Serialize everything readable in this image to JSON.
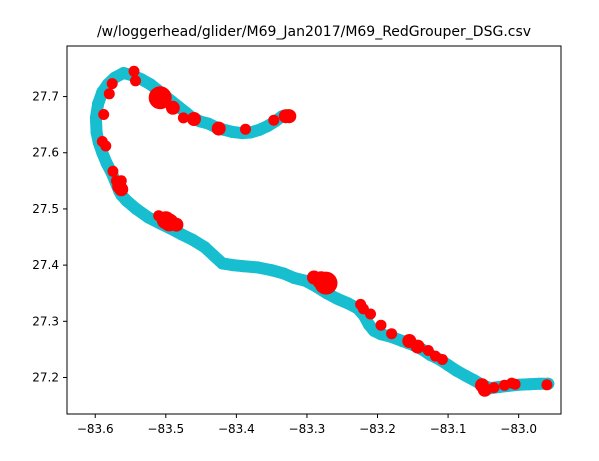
{
  "chart_data": {
    "type": "scatter",
    "title": "/w/loggerhead/glider/M69_Jan2017/M69_RedGrouper_DSG.csv",
    "xlabel": "",
    "ylabel": "",
    "xlim": [
      -83.64,
      -82.94
    ],
    "ylim": [
      27.135,
      27.79
    ],
    "x_ticks": [
      -83.6,
      -83.5,
      -83.4,
      -83.3,
      -83.2,
      -83.1,
      -83.0
    ],
    "x_tick_labels": [
      "−83.6",
      "−83.5",
      "−83.4",
      "−83.3",
      "−83.2",
      "−83.1",
      "−83.0"
    ],
    "y_ticks": [
      27.2,
      27.3,
      27.4,
      27.5,
      27.6,
      27.7
    ],
    "y_tick_labels": [
      "27.2",
      "27.3",
      "27.4",
      "27.5",
      "27.6",
      "27.7"
    ],
    "grid": false,
    "track_color": "#17becf",
    "marker_color": "#ff0000",
    "series": [
      {
        "kind": "track",
        "lon": [
          -83.326,
          -83.335,
          -83.345,
          -83.355,
          -83.367,
          -83.38,
          -83.392,
          -83.405,
          -83.418,
          -83.43,
          -83.44,
          -83.452,
          -83.463,
          -83.472,
          -83.482,
          -83.492,
          -83.502,
          -83.512,
          -83.522,
          -83.535,
          -83.548,
          -83.56,
          -83.572,
          -83.582,
          -83.59,
          -83.596,
          -83.599,
          -83.598,
          -83.595,
          -83.59,
          -83.584,
          -83.577,
          -83.571,
          -83.566,
          -83.563,
          -83.556,
          -83.542,
          -83.525,
          -83.508,
          -83.493,
          -83.478,
          -83.462,
          -83.445,
          -83.432,
          -83.42,
          -83.405,
          -83.39,
          -83.37,
          -83.35,
          -83.333,
          -83.318,
          -83.302,
          -83.287,
          -83.272,
          -83.257,
          -83.242,
          -83.228,
          -83.219,
          -83.212,
          -83.205,
          -83.195,
          -83.18,
          -83.165,
          -83.15,
          -83.137,
          -83.125,
          -83.112,
          -83.1,
          -83.088,
          -83.075,
          -83.063,
          -83.052,
          -83.04,
          -83.028,
          -83.015,
          -83.0,
          -82.985,
          -82.97,
          -82.958
        ],
        "lat": [
          27.667,
          27.665,
          27.656,
          27.648,
          27.641,
          27.636,
          27.635,
          27.637,
          27.641,
          27.646,
          27.652,
          27.656,
          27.663,
          27.672,
          27.682,
          27.692,
          27.702,
          27.712,
          27.722,
          27.731,
          27.738,
          27.742,
          27.734,
          27.722,
          27.708,
          27.687,
          27.662,
          27.636,
          27.618,
          27.6,
          27.582,
          27.565,
          27.547,
          27.532,
          27.525,
          27.515,
          27.5,
          27.485,
          27.474,
          27.465,
          27.455,
          27.445,
          27.432,
          27.417,
          27.403,
          27.4,
          27.398,
          27.396,
          27.391,
          27.385,
          27.377,
          27.372,
          27.362,
          27.35,
          27.34,
          27.332,
          27.323,
          27.31,
          27.294,
          27.283,
          27.277,
          27.272,
          27.265,
          27.258,
          27.25,
          27.24,
          27.232,
          27.222,
          27.212,
          27.203,
          27.195,
          27.187,
          27.181,
          27.183,
          27.185,
          27.187,
          27.188,
          27.189,
          27.189
        ]
      },
      {
        "kind": "detections",
        "lon": [
          -83.325,
          -83.33,
          -83.347,
          -83.387,
          -83.425,
          -83.46,
          -83.475,
          -83.49,
          -83.508,
          -83.543,
          -83.545,
          -83.576,
          -83.58,
          -83.588,
          -83.59,
          -83.585,
          -83.575,
          -83.57,
          -83.566,
          -83.563,
          -83.563,
          -83.51,
          -83.5,
          -83.495,
          -83.485,
          -83.29,
          -83.28,
          -83.273,
          -83.224,
          -83.22,
          -83.21,
          -83.195,
          -83.18,
          -83.155,
          -83.143,
          -83.128,
          -83.118,
          -83.108,
          -83.052,
          -83.048,
          -83.035,
          -83.02,
          -83.01,
          -83.005,
          -82.96
        ],
        "lat": [
          27.665,
          27.665,
          27.658,
          27.642,
          27.643,
          27.66,
          27.662,
          27.68,
          27.698,
          27.728,
          27.745,
          27.723,
          27.705,
          27.668,
          27.62,
          27.612,
          27.567,
          27.55,
          27.54,
          27.535,
          27.55,
          27.488,
          27.48,
          27.476,
          27.472,
          27.378,
          27.373,
          27.368,
          27.33,
          27.322,
          27.313,
          27.293,
          27.278,
          27.265,
          27.255,
          27.248,
          27.238,
          27.232,
          27.186,
          27.178,
          27.182,
          27.186,
          27.19,
          27.188,
          27.187
        ],
        "size": [
          2,
          2,
          1,
          1,
          2,
          2,
          1,
          2,
          4,
          1,
          1,
          1,
          1,
          1,
          1,
          1,
          1,
          1,
          2,
          2,
          1,
          1,
          3,
          3,
          2,
          2,
          3,
          4,
          1,
          1,
          1,
          1,
          1,
          2,
          2,
          1,
          1,
          1,
          2,
          2,
          1,
          1,
          1,
          1,
          1
        ]
      }
    ]
  }
}
